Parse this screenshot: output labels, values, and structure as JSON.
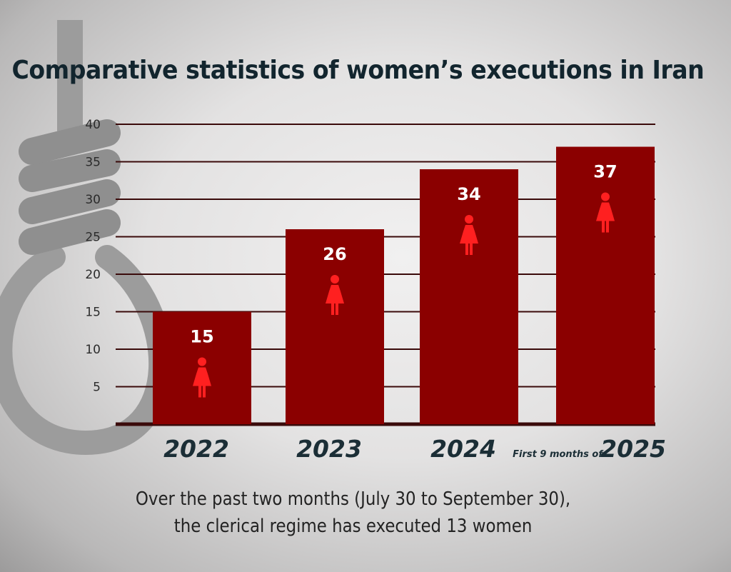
{
  "chart_data": {
    "type": "bar",
    "title": "Comparative statistics of women’s executions in Iran",
    "categories": [
      "2022",
      "2023",
      "2024",
      "2025"
    ],
    "category_prefixes": [
      "",
      "",
      "",
      "First 9 months of"
    ],
    "values": [
      15,
      26,
      34,
      37
    ],
    "value_labels": [
      "15",
      "26",
      "34",
      "37"
    ],
    "yticks": [
      5,
      10,
      15,
      20,
      25,
      30,
      35,
      40
    ],
    "ylim": [
      0,
      40
    ],
    "xlabel": "",
    "ylabel": "",
    "grid": true,
    "bar_color": "#8b0000",
    "icon": "woman-icon",
    "icon_color": "#ff2020"
  },
  "caption": {
    "line1": "Over the past two months (July 30 to September 30),",
    "line2": "the clerical regime has executed 13 women"
  },
  "background": {
    "icon": "noose-icon",
    "color": "#9a9a9a"
  }
}
